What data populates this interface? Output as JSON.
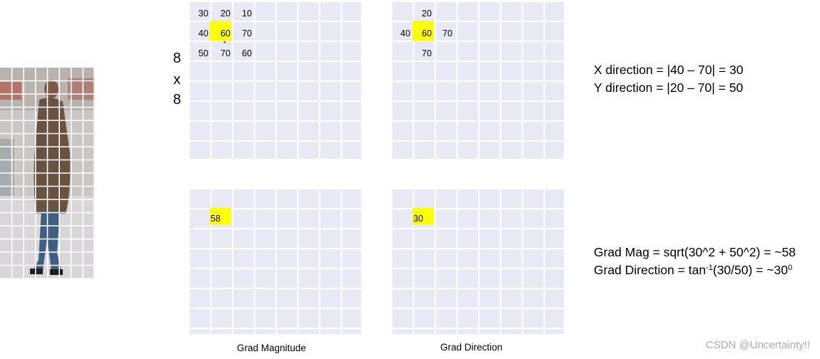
{
  "side_label": {
    "line1": "8",
    "line2": "x",
    "line3": "8"
  },
  "top_left_grid": {
    "row1": [
      "30",
      "20",
      "10"
    ],
    "row2": [
      "40",
      "60",
      "70"
    ],
    "row3": [
      "50",
      "70",
      "60"
    ],
    "marker": "*"
  },
  "top_right_grid": {
    "top": "20",
    "left": "40",
    "center": "60",
    "right": "70",
    "bottom": "70"
  },
  "bottom_left_grid": {
    "value": "58"
  },
  "bottom_right_grid": {
    "value": "30"
  },
  "captions": {
    "left": "Grad Magnitude",
    "right": "Grad Direction"
  },
  "equations": {
    "x_direction": "X direction = |40 – 70| = 30",
    "y_direction": "Y direction = |20 – 70| = 50",
    "grad_mag": "Grad Mag = sqrt(30^2 + 50^2) = ~58",
    "grad_dir_prefix": "Grad Direction = tan",
    "grad_dir_sup": "-1",
    "grad_dir_mid": "(30/50) = ~30",
    "grad_dir_sup2": "0"
  },
  "watermark": "CSDN @Uncertainty!!",
  "colors": {
    "highlight": "#ffff00",
    "grid_fill": "#e8e9f4",
    "watermark": "#a9a9a9"
  }
}
